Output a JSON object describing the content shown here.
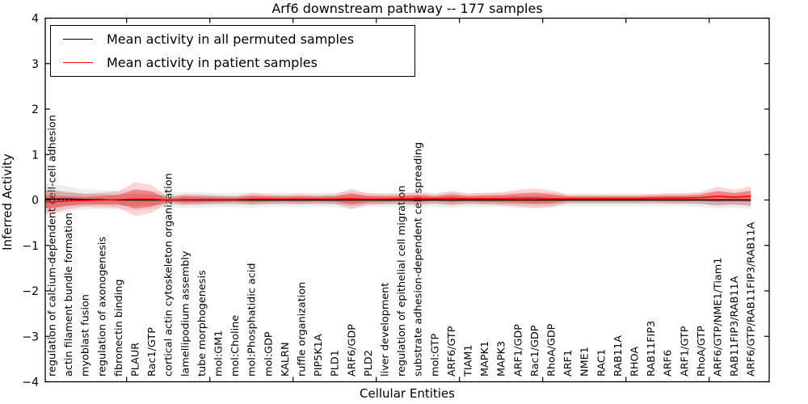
{
  "chart_data": {
    "type": "line",
    "title": "Arf6 downstream pathway -- 177 samples",
    "xlabel": "Cellular Entities",
    "ylabel": "Inferred Activity",
    "ylim": [
      -4,
      4
    ],
    "yticks": [
      -4,
      -3,
      -2,
      -1,
      0,
      1,
      2,
      3,
      4
    ],
    "grid": false,
    "legend_position": "upper left",
    "zero_line": {
      "style": "dotted",
      "color": "#111111",
      "y": 0
    },
    "categories": [
      "regulation of calcium-dependent cell-cell adhesion",
      "actin filament bundle formation",
      "myoblast fusion",
      "regulation of axonogenesis",
      "fibronectin binding",
      "PLAUR",
      "Rac1/GTP",
      "cortical actin cytoskeleton organization",
      "lamellipodium assembly",
      "tube morphogenesis",
      "mol:GM1",
      "mol:Choline",
      "mol:Phosphatidic acid",
      "mol:GDP",
      "KALRN",
      "ruffle organization",
      "PIP5K1A",
      "PLD1",
      "ARF6/GDP",
      "PLD2",
      "liver development",
      "regulation of epithelial cell migration",
      "substrate adhesion-dependent cell spreading",
      "mol:GTP",
      "ARF6/GTP",
      "TIAM1",
      "MAPK1",
      "MAPK3",
      "ARF1/GDP",
      "Rac1/GDP",
      "RhoA/GDP",
      "ARF1",
      "NME1",
      "RAC1",
      "RAB11A",
      "RHOA",
      "RAB11FIP3",
      "ARF6",
      "ARF1/GTP",
      "RhoA/GTP",
      "ARF6/GTP/NME1/Tiam1",
      "RAB11FIP3/RAB11A",
      "ARF6/GTP/RAB11FIP3/RAB11A"
    ],
    "series": [
      {
        "name": "Mean activity in all permuted samples",
        "color": "#000000",
        "band_color": "#888888",
        "values": [
          0.02,
          0.02,
          0.01,
          0.01,
          0,
          0,
          0,
          0,
          0,
          0,
          0,
          0,
          0,
          0,
          0,
          0,
          0,
          0,
          0,
          0,
          0,
          0,
          0,
          0,
          0,
          0,
          0,
          0,
          0,
          0,
          0,
          0,
          0,
          0,
          0,
          0,
          0,
          0,
          0,
          0,
          0,
          0,
          0
        ],
        "band": [
          0.2,
          0.16,
          0.13,
          0.12,
          0.12,
          0.14,
          0.12,
          0.1,
          0.1,
          0.1,
          0.09,
          0.09,
          0.1,
          0.09,
          0.09,
          0.09,
          0.09,
          0.09,
          0.12,
          0.09,
          0.09,
          0.09,
          0.1,
          0.09,
          0.1,
          0.09,
          0.09,
          0.09,
          0.1,
          0.1,
          0.1,
          0.08,
          0.08,
          0.08,
          0.08,
          0.08,
          0.08,
          0.08,
          0.08,
          0.09,
          0.11,
          0.1,
          0.12
        ]
      },
      {
        "name": "Mean activity in patient samples",
        "color": "#ff0000",
        "band_color": "#ff0000",
        "values": [
          -0.04,
          -0.02,
          -0.01,
          0.0,
          0.01,
          0.02,
          0.02,
          0.0,
          0.01,
          0.01,
          0.01,
          0.01,
          0.02,
          0.02,
          0.02,
          0.02,
          0.02,
          0.02,
          0.03,
          0.02,
          0.02,
          0.03,
          0.03,
          0.03,
          0.04,
          0.03,
          0.03,
          0.03,
          0.04,
          0.04,
          0.03,
          0.03,
          0.03,
          0.03,
          0.03,
          0.03,
          0.04,
          0.04,
          0.04,
          0.05,
          0.08,
          0.06,
          0.08
        ],
        "band": [
          0.14,
          0.1,
          0.08,
          0.09,
          0.1,
          0.21,
          0.17,
          0.03,
          0.07,
          0.06,
          0.05,
          0.04,
          0.07,
          0.06,
          0.05,
          0.06,
          0.05,
          0.06,
          0.12,
          0.07,
          0.06,
          0.06,
          0.08,
          0.05,
          0.09,
          0.06,
          0.07,
          0.08,
          0.1,
          0.12,
          0.1,
          0.05,
          0.05,
          0.05,
          0.05,
          0.05,
          0.05,
          0.06,
          0.06,
          0.07,
          0.12,
          0.09,
          0.12
        ]
      }
    ]
  }
}
